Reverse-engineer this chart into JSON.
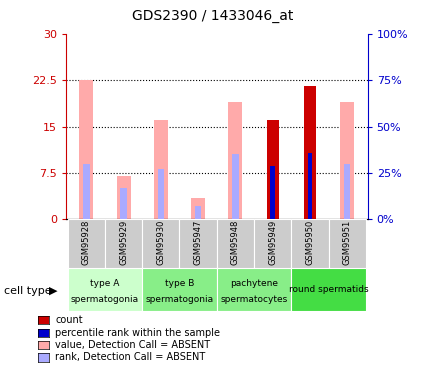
{
  "title": "GDS2390 / 1433046_at",
  "samples": [
    "GSM95928",
    "GSM95929",
    "GSM95930",
    "GSM95947",
    "GSM95948",
    "GSM95949",
    "GSM95950",
    "GSM95951"
  ],
  "value_absent": [
    22.5,
    7.0,
    16.0,
    3.5,
    19.0,
    null,
    null,
    19.0
  ],
  "rank_absent_pct": [
    30,
    17,
    27,
    7,
    35,
    null,
    null,
    30
  ],
  "count": [
    null,
    null,
    null,
    null,
    null,
    16.0,
    21.5,
    null
  ],
  "percentile_rank_pct": [
    null,
    null,
    null,
    null,
    null,
    29,
    36,
    null
  ],
  "ylim_left": [
    0,
    30
  ],
  "ylim_right": [
    0,
    100
  ],
  "yticks_left": [
    0,
    7.5,
    15,
    22.5,
    30
  ],
  "yticks_right": [
    0,
    25,
    50,
    75,
    100
  ],
  "ytick_labels_left": [
    "0",
    "7.5",
    "15",
    "22.5",
    "30"
  ],
  "ytick_labels_right": [
    "0%",
    "25%",
    "50%",
    "75%",
    "100%"
  ],
  "left_axis_color": "#cc0000",
  "right_axis_color": "#0000cc",
  "absent_bar_color": "#ffaaaa",
  "absent_rank_color": "#aaaaff",
  "count_color": "#cc0000",
  "percentile_color": "#0000cc",
  "groups": [
    {
      "label": "type A\nspermatogonia",
      "start": 0,
      "end": 1,
      "color": "#ccffcc"
    },
    {
      "label": "type B\nspermatogonia",
      "start": 2,
      "end": 3,
      "color": "#88ee88"
    },
    {
      "label": "pachytene\nspermatocytes",
      "start": 4,
      "end": 5,
      "color": "#88ee88"
    },
    {
      "label": "round spermatids",
      "start": 6,
      "end": 7,
      "color": "#44dd44"
    }
  ],
  "legend_items": [
    {
      "color": "#cc0000",
      "label": "count"
    },
    {
      "color": "#0000cc",
      "label": "percentile rank within the sample"
    },
    {
      "color": "#ffaaaa",
      "label": "value, Detection Call = ABSENT"
    },
    {
      "color": "#aaaaff",
      "label": "rank, Detection Call = ABSENT"
    }
  ]
}
